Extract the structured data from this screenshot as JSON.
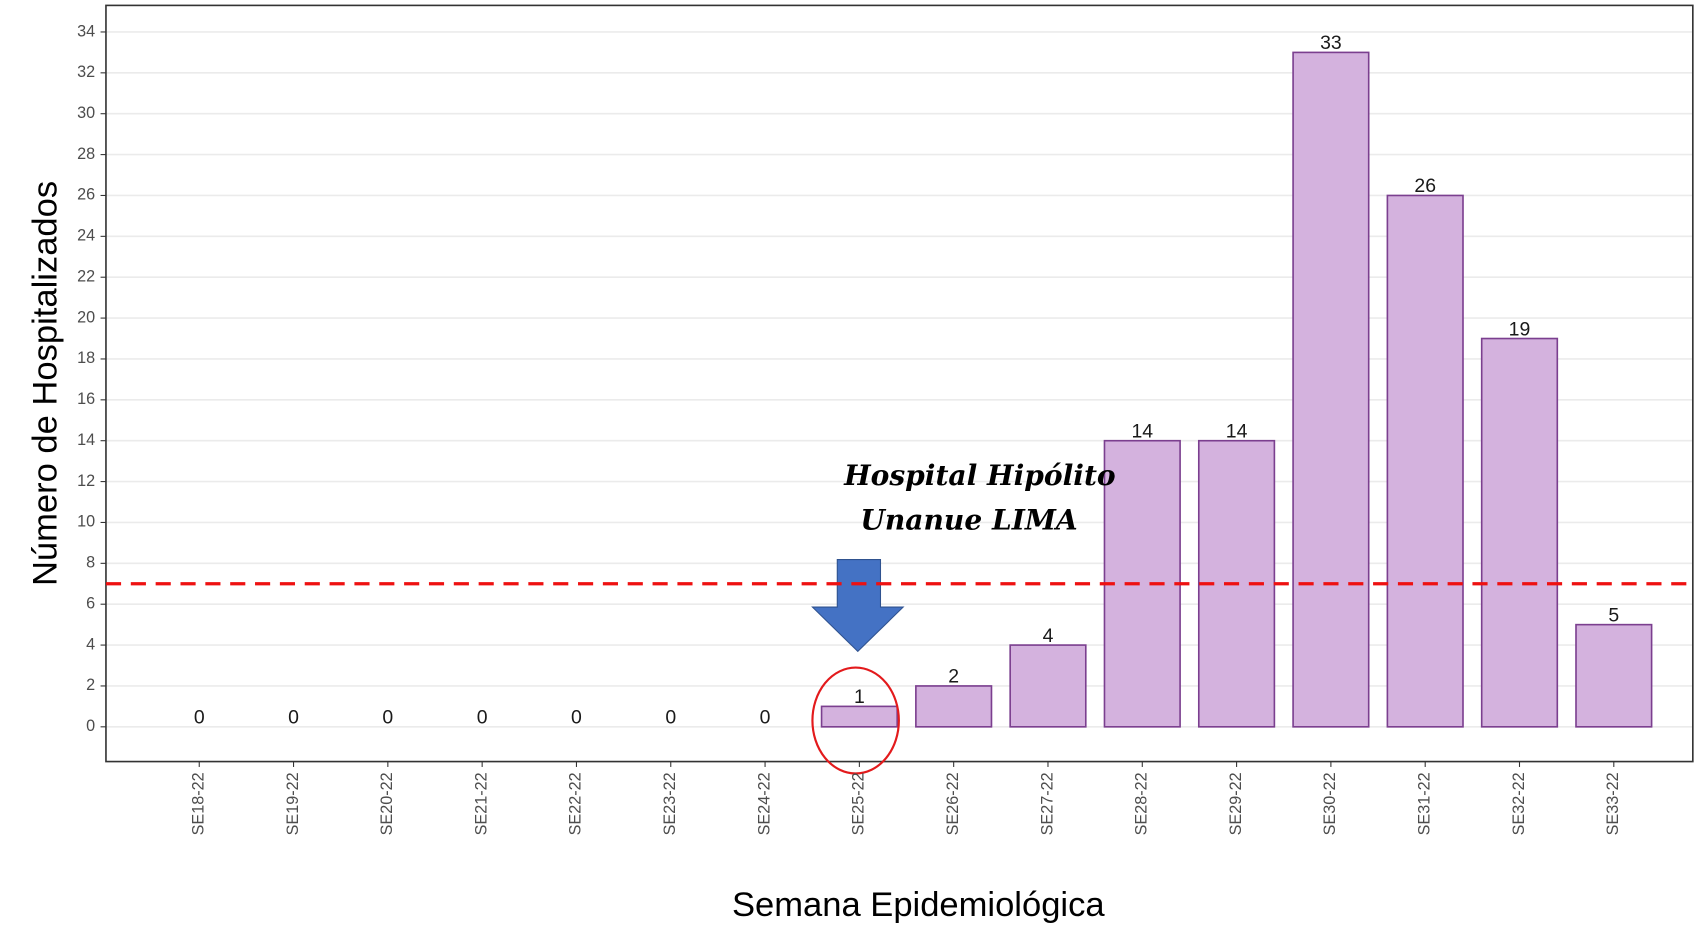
{
  "chart_data": {
    "type": "bar",
    "x_label": "Semana Epidemiológica",
    "y_label": "Número de Hospitalizados",
    "annotation": [
      "Hospital Hipólito",
      "Unanue LIMA"
    ],
    "categories": [
      "SE18-22",
      "SE19-22",
      "SE20-22",
      "SE21-22",
      "SE22-22",
      "SE23-22",
      "SE24-22",
      "SE25-22",
      "SE26-22",
      "SE27-22",
      "SE28-22",
      "SE29-22",
      "SE30-22",
      "SE31-22",
      "SE32-22",
      "SE33-22"
    ],
    "values": [
      0,
      0,
      0,
      0,
      0,
      0,
      0,
      1,
      2,
      4,
      14,
      14,
      33,
      26,
      19,
      5
    ],
    "color": "#d4b2de",
    "edge_color": "#7b3f8f",
    "ylim": [
      -1.7,
      35.3
    ],
    "yticks": [
      0,
      2,
      4,
      6,
      8,
      10,
      12,
      14,
      16,
      18,
      20,
      22,
      24,
      26,
      28,
      30,
      32,
      34
    ],
    "grid": true,
    "reference_line": 7,
    "reference_color": "#ee1111"
  }
}
